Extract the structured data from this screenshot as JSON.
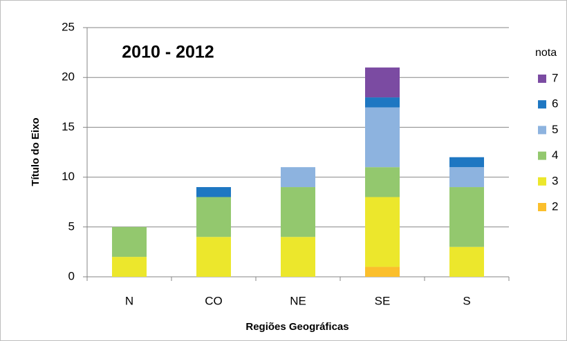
{
  "chart_data": {
    "type": "stacked_bar",
    "title": "2010 - 2012",
    "xlabel": "Regiões Geográficas",
    "ylabel": "Título do Eixo",
    "legend_title": "nota",
    "categories": [
      "N",
      "CO",
      "NE",
      "SE",
      "S"
    ],
    "series": [
      {
        "name": "2",
        "color": "#fbbf2c",
        "values": [
          0,
          0,
          0,
          1,
          0
        ]
      },
      {
        "name": "3",
        "color": "#ece72c",
        "values": [
          2,
          4,
          4,
          7,
          3
        ]
      },
      {
        "name": "4",
        "color": "#93c86e",
        "values": [
          3,
          4,
          5,
          3,
          6
        ]
      },
      {
        "name": "5",
        "color": "#8db3df",
        "values": [
          0,
          0,
          2,
          6,
          2
        ]
      },
      {
        "name": "6",
        "color": "#1e77c2",
        "values": [
          0,
          1,
          0,
          1,
          1
        ]
      },
      {
        "name": "7",
        "color": "#7b4ba2",
        "values": [
          0,
          0,
          0,
          3,
          0
        ]
      }
    ],
    "ylim": [
      0,
      25
    ],
    "yticks": [
      0,
      5,
      10,
      15,
      20,
      25
    ],
    "grid": true,
    "legend": "right"
  }
}
